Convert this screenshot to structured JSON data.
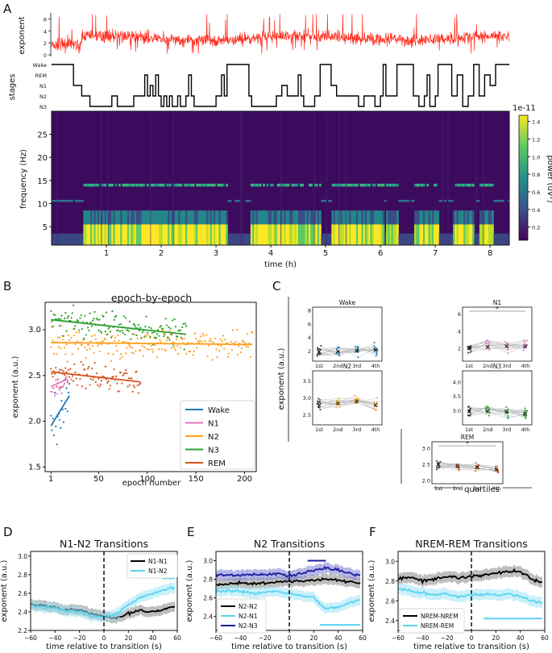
{
  "panel_labels": {
    "a": "A",
    "b": "B",
    "c": "C",
    "d": "D",
    "e": "E",
    "f": "F"
  },
  "panelA": {
    "exponent_label": "exponent",
    "exponent_ticks": [
      "6",
      "4",
      "2",
      "0"
    ],
    "stages_label": "stages",
    "stage_ticks": [
      "Wake",
      "REM",
      "N1",
      "N2",
      "N3"
    ],
    "freq_label": "frequency (Hz)",
    "freq_ticks": [
      "25",
      "20",
      "15",
      "10",
      "5"
    ],
    "time_label": "time (h)",
    "time_ticks": [
      "1",
      "2",
      "3",
      "4",
      "5",
      "6",
      "7",
      "8"
    ],
    "colorbar_label": "power (uV²)",
    "colorbar_exponent": "1e-11",
    "colorbar_ticks": [
      "1.4",
      "1.2",
      "1.0",
      "0.8",
      "0.6",
      "0.4",
      "0.2"
    ],
    "colors": {
      "trace": "#ff2a1a",
      "hyp": "#000000",
      "cmap_low": "#440154",
      "cmap_mid": "#21918c",
      "cmap_high": "#fde725"
    }
  },
  "chart_data": [
    {
      "type": "scatter",
      "title": "epoch-by-epoch",
      "xlabel": "epoch number",
      "ylabel": "exponent (a.u.)",
      "xticks": [
        "1",
        "50",
        "100",
        "150",
        "200"
      ],
      "yticks": [
        "3.0",
        "2.5",
        "2.0",
        "1.5"
      ],
      "xlim": [
        -5,
        212
      ],
      "ylim": [
        1.45,
        3.3
      ],
      "series": [
        {
          "name": "Wake",
          "color": "#1f77b4",
          "fit_x": [
            1,
            20
          ],
          "fit_y": [
            1.95,
            2.28
          ],
          "n_points": 20
        },
        {
          "name": "N1",
          "color": "#e377c2",
          "fit_x": [
            1,
            18
          ],
          "fit_y": [
            2.38,
            2.46
          ],
          "n_points": 18
        },
        {
          "name": "N2",
          "color": "#ff9f1a",
          "fit_x": [
            1,
            208
          ],
          "fit_y": [
            2.86,
            2.84
          ],
          "n_points": 208
        },
        {
          "name": "N3",
          "color": "#2ca02c",
          "fit_x": [
            1,
            140
          ],
          "fit_y": [
            3.11,
            2.95
          ],
          "n_points": 140
        },
        {
          "name": "REM",
          "color": "#d4531c",
          "fit_x": [
            1,
            93
          ],
          "fit_y": [
            2.54,
            2.43
          ],
          "n_points": 93
        }
      ]
    },
    {
      "type": "line",
      "title": "N1-N2 Transitions",
      "xlabel": "time relative to transition (s)",
      "ylabel": "exponent (a.u.)",
      "xticks": [
        "−60",
        "−40",
        "−20",
        "0",
        "20",
        "40",
        "60"
      ],
      "yticks": [
        "3.0",
        "2.8",
        "2.6",
        "2.4",
        "2.2"
      ],
      "xlim": [
        -60,
        60
      ],
      "ylim": [
        2.2,
        3.05
      ],
      "series": [
        {
          "name": "N1-N1",
          "color": "#000000",
          "x": [
            -60,
            -50,
            -40,
            -30,
            -20,
            -10,
            0,
            10,
            20,
            30,
            40,
            50,
            58
          ],
          "y": [
            2.48,
            2.47,
            2.45,
            2.42,
            2.42,
            2.38,
            2.35,
            2.33,
            2.38,
            2.42,
            2.4,
            2.43,
            2.46
          ]
        },
        {
          "name": "N1-N2",
          "color": "#5bd4f2",
          "x": [
            -60,
            -50,
            -40,
            -30,
            -20,
            -10,
            0,
            10,
            20,
            30,
            40,
            50,
            58
          ],
          "y": [
            2.47,
            2.45,
            2.44,
            2.41,
            2.4,
            2.36,
            2.34,
            2.38,
            2.48,
            2.56,
            2.6,
            2.64,
            2.66
          ]
        }
      ],
      "sig_bar": {
        "x": [
          48,
          58
        ],
        "y": 2.76,
        "color": "#5bd4f2"
      }
    },
    {
      "type": "line",
      "title": "N2 Transitions",
      "xlabel": "time relative to transition (s)",
      "ylabel": "exponent (a.u.)",
      "xticks": [
        "−60",
        "−40",
        "−20",
        "0",
        "20",
        "40",
        "60"
      ],
      "yticks": [
        "3.0",
        "2.8",
        "2.6",
        "2.4"
      ],
      "xlim": [
        -60,
        60
      ],
      "ylim": [
        2.25,
        3.1
      ],
      "series": [
        {
          "name": "N2-N2",
          "color": "#000000",
          "x": [
            -60,
            -50,
            -40,
            -30,
            -20,
            -10,
            0,
            10,
            20,
            30,
            40,
            50,
            58
          ],
          "y": [
            2.74,
            2.75,
            2.76,
            2.75,
            2.76,
            2.77,
            2.78,
            2.78,
            2.79,
            2.8,
            2.79,
            2.77,
            2.76
          ]
        },
        {
          "name": "N2-N1",
          "color": "#5bd4f2",
          "x": [
            -60,
            -50,
            -40,
            -30,
            -20,
            -10,
            0,
            10,
            20,
            30,
            40,
            50,
            58
          ],
          "y": [
            2.67,
            2.68,
            2.67,
            2.65,
            2.66,
            2.67,
            2.65,
            2.63,
            2.6,
            2.48,
            2.5,
            2.55,
            2.58
          ]
        },
        {
          "name": "N2-N3",
          "color": "#1c1c9c",
          "x": [
            -60,
            -50,
            -40,
            -30,
            -20,
            -10,
            0,
            10,
            20,
            30,
            40,
            50,
            58
          ],
          "y": [
            2.84,
            2.85,
            2.84,
            2.85,
            2.85,
            2.86,
            2.84,
            2.86,
            2.9,
            2.92,
            2.9,
            2.86,
            2.84
          ]
        }
      ],
      "sig_bars": [
        {
          "x": [
            15,
            30
          ],
          "y": 3.0,
          "color": "#1c1c9c"
        },
        {
          "x": [
            25,
            58
          ],
          "y": 2.31,
          "color": "#5bd4f2"
        }
      ]
    },
    {
      "type": "line",
      "title": "NREM-REM Transitions",
      "xlabel": "time relative to transition (s)",
      "ylabel": "exponent (a.u.)",
      "xticks": [
        "−60",
        "−40",
        "−20",
        "0",
        "20",
        "40",
        "60"
      ],
      "yticks": [
        "3.0",
        "2.8",
        "2.6",
        "2.4"
      ],
      "xlim": [
        -60,
        60
      ],
      "ylim": [
        2.3,
        3.1
      ],
      "series": [
        {
          "name": "NREM-NREM",
          "color": "#000000",
          "x": [
            -60,
            -50,
            -40,
            -30,
            -20,
            -10,
            0,
            10,
            20,
            30,
            40,
            50,
            58
          ],
          "y": [
            2.82,
            2.84,
            2.8,
            2.82,
            2.85,
            2.83,
            2.85,
            2.86,
            2.88,
            2.9,
            2.9,
            2.82,
            2.78
          ]
        },
        {
          "name": "NREM-REM",
          "color": "#5bd4f2",
          "x": [
            -60,
            -50,
            -40,
            -30,
            -20,
            -10,
            0,
            10,
            20,
            30,
            40,
            50,
            58
          ],
          "y": [
            2.72,
            2.7,
            2.68,
            2.66,
            2.67,
            2.64,
            2.66,
            2.66,
            2.66,
            2.67,
            2.64,
            2.6,
            2.58
          ]
        }
      ],
      "sig_bar": {
        "x": [
          10,
          58
        ],
        "y": 2.42,
        "color": "#5bd4f2"
      }
    }
  ],
  "panelC": {
    "ylabel": "exponent (a.u.)",
    "xlabel": "quartiles",
    "quartile_ticks": [
      "1st",
      "2nd",
      "3rd",
      "4th"
    ],
    "star": "*",
    "subplots": [
      {
        "name": "Wake",
        "color": "#1f77b4",
        "yticks": [
          "8",
          "6",
          "4",
          "2"
        ],
        "means": [
          2.0,
          2.0,
          2.1,
          2.2
        ]
      },
      {
        "name": "N1",
        "color": "#e377c2",
        "yticks": [
          "6",
          "4",
          "2"
        ],
        "means": [
          2.0,
          2.2,
          2.3,
          2.3
        ]
      },
      {
        "name": "N2",
        "color": "#ff9f1a",
        "yticks": [
          "3.5",
          "3.0",
          "2.5"
        ],
        "means": [
          2.8,
          2.85,
          2.9,
          2.8
        ]
      },
      {
        "name": "N3",
        "color": "#2ca02c",
        "yticks": [
          "4.0",
          "3.5",
          "3.0"
        ],
        "means": [
          3.0,
          3.0,
          2.95,
          2.9
        ]
      },
      {
        "name": "REM",
        "color": "#d4531c",
        "yticks": [
          "3.0",
          "2.5",
          "2.0"
        ],
        "means": [
          2.5,
          2.45,
          2.42,
          2.35
        ]
      }
    ]
  }
}
